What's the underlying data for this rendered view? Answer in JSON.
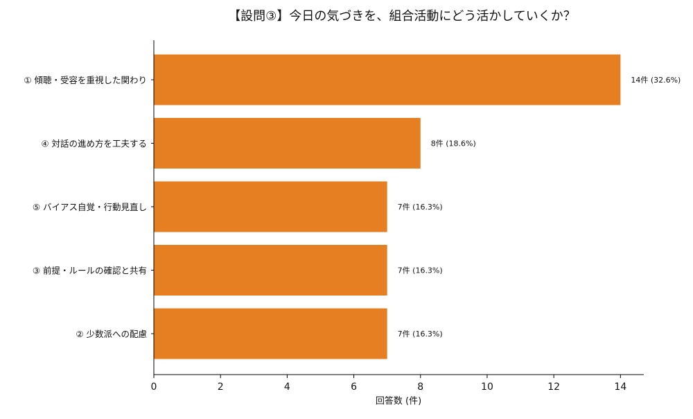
{
  "chart_data": {
    "type": "bar",
    "orientation": "horizontal",
    "title": "【設問③】今日の気づきを、組合活動にどう活かしていくか？",
    "xlabel": "回答数 (件)",
    "ylabel": "",
    "xlim": [
      0,
      14.7
    ],
    "xticks": [
      0,
      2,
      4,
      6,
      8,
      10,
      12,
      14
    ],
    "categories": [
      "① 傾聴・受容を重視した関わり",
      "④ 対話の進め方を工夫する",
      "⑤ バイアス自覚・行動見直し",
      "③ 前提・ルールの確認と共有",
      "② 少数派への配慮"
    ],
    "values": [
      14,
      8,
      7,
      7,
      7
    ],
    "data_labels": [
      "14件 (32.6%)",
      "8件 (18.6%)",
      "7件 (16.3%)",
      "7件 (16.3%)",
      "7件 (16.3%)"
    ],
    "bar_color": "#e67e22",
    "grid": false,
    "legend": "none"
  }
}
